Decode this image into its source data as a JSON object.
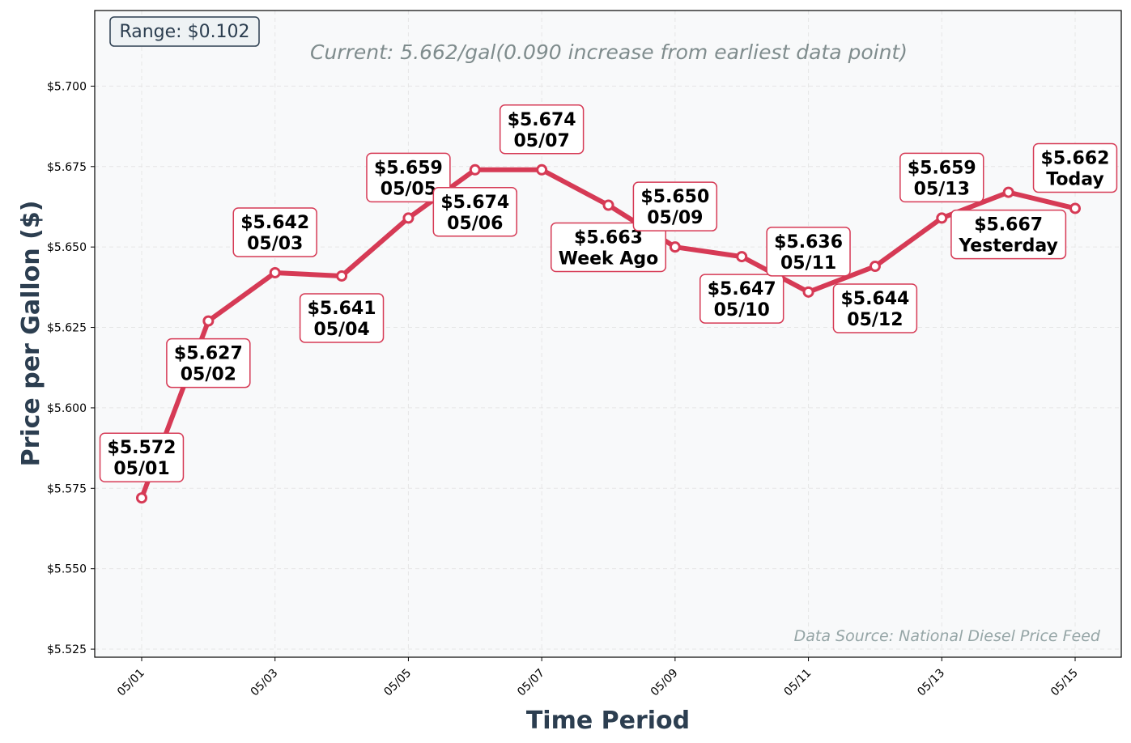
{
  "chart_data": {
    "type": "line",
    "xlabel": "Time Period",
    "ylabel": "Price per Gallon ($)",
    "x": [
      "05/01",
      "05/02",
      "05/03",
      "05/04",
      "05/05",
      "05/06",
      "05/07",
      "05/08",
      "05/09",
      "05/10",
      "05/11",
      "05/12",
      "05/13",
      "05/14",
      "05/15"
    ],
    "x_ticks": [
      "05/01",
      "05/03",
      "05/05",
      "05/07",
      "05/09",
      "05/11",
      "05/13",
      "05/15"
    ],
    "y_ticks": [
      "$5.525",
      "$5.550",
      "$5.575",
      "$5.600",
      "$5.625",
      "$5.650",
      "$5.675",
      "$5.700"
    ],
    "ylim": [
      5.5225,
      5.7235
    ],
    "series": [
      {
        "values": [
          5.572,
          5.627,
          5.642,
          5.641,
          5.659,
          5.674,
          5.674,
          5.663,
          5.65,
          5.647,
          5.636,
          5.644,
          5.659,
          5.667,
          5.662
        ]
      }
    ],
    "annotations": [
      {
        "price": "$5.572",
        "label": "05/01",
        "pos": "above"
      },
      {
        "price": "$5.627",
        "label": "05/02",
        "pos": "below"
      },
      {
        "price": "$5.642",
        "label": "05/03",
        "pos": "above"
      },
      {
        "price": "$5.641",
        "label": "05/04",
        "pos": "below"
      },
      {
        "price": "$5.659",
        "label": "05/05",
        "pos": "above"
      },
      {
        "price": "$5.674",
        "label": "05/06",
        "pos": "below"
      },
      {
        "price": "$5.674",
        "label": "05/07",
        "pos": "above"
      },
      {
        "price": "$5.663",
        "label": "Week Ago",
        "pos": "below"
      },
      {
        "price": "$5.650",
        "label": "05/09",
        "pos": "above"
      },
      {
        "price": "$5.647",
        "label": "05/10",
        "pos": "below"
      },
      {
        "price": "$5.636",
        "label": "05/11",
        "pos": "above"
      },
      {
        "price": "$5.644",
        "label": "05/12",
        "pos": "below"
      },
      {
        "price": "$5.659",
        "label": "05/13",
        "pos": "above"
      },
      {
        "price": "$5.667",
        "label": "Yesterday",
        "pos": "below"
      },
      {
        "price": "$5.662",
        "label": "Today",
        "pos": "above"
      }
    ],
    "range_text": "Range: $0.102",
    "current_text": "Current: 5.662/gal(0.090 increase from earliest data point)",
    "source_text": "Data Source: National Diesel Price Feed",
    "grid": true,
    "colors": {
      "line": "#d63a55",
      "marker_fill": "#ffffff",
      "plot_background": "#f8f9fa",
      "box_border": "#d63a55",
      "grid": "#e6e6e6",
      "axis_title": "#2c3e50",
      "current_text": "#7f8c8d",
      "source_text": "#95a5a6"
    }
  }
}
